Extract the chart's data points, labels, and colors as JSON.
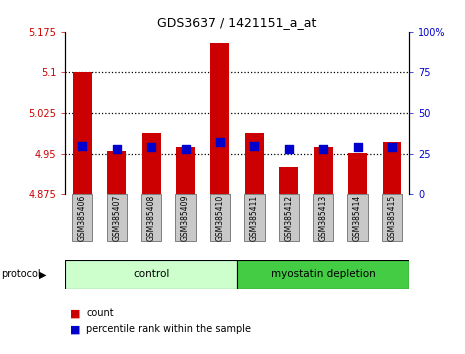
{
  "title": "GDS3637 / 1421151_a_at",
  "samples": [
    "GSM385406",
    "GSM385407",
    "GSM385408",
    "GSM385409",
    "GSM385410",
    "GSM385411",
    "GSM385412",
    "GSM385413",
    "GSM385414",
    "GSM385415"
  ],
  "counts": [
    5.1,
    4.955,
    4.988,
    4.962,
    5.155,
    4.988,
    4.925,
    4.962,
    4.952,
    4.972
  ],
  "percentile_ranks": [
    30,
    28,
    29,
    28,
    32,
    30,
    28,
    28,
    29,
    29
  ],
  "ylim": [
    4.875,
    5.175
  ],
  "yticks": [
    4.875,
    4.95,
    5.025,
    5.1,
    5.175
  ],
  "ytick_labels": [
    "4.875",
    "4.95",
    "5.025",
    "5.1",
    "5.175"
  ],
  "y2lim": [
    0,
    100
  ],
  "y2ticks": [
    0,
    25,
    50,
    75,
    100
  ],
  "y2tick_labels": [
    "0",
    "25",
    "50",
    "75",
    "100%"
  ],
  "bar_color": "#cc0000",
  "dot_color": "#0000cc",
  "group1_color": "#ccffcc",
  "group2_color": "#44cc44",
  "tick_label_bg": "#c8c8c8",
  "ytick_color": "#cc0000",
  "y2tick_color": "#0000cc",
  "baseline": 4.875,
  "bar_width": 0.55,
  "dot_size": 28,
  "n_control": 5,
  "n_total": 10
}
